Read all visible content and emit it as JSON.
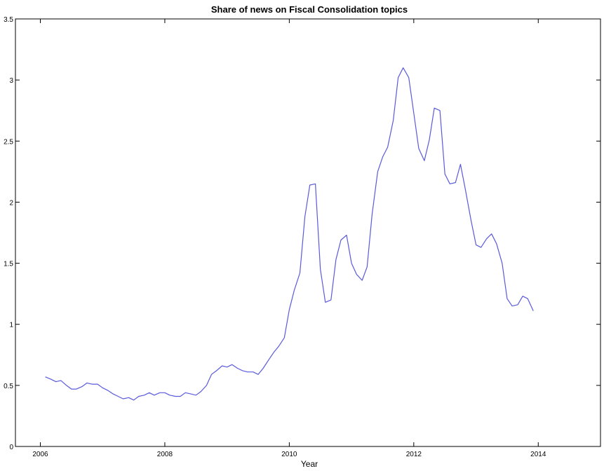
{
  "colors": {
    "background": "#ffffff",
    "axes": "#000000",
    "series_line": "#5a5adc"
  },
  "chart_data": {
    "type": "line",
    "title": "Share of news on Fiscal Consolidation topics",
    "xlabel": "Year",
    "ylabel": "",
    "xlim": [
      2005.6,
      2015.0
    ],
    "ylim": [
      0,
      3.5
    ],
    "xticks": [
      2006,
      2008,
      2010,
      2012,
      2014
    ],
    "xtick_labels": [
      "2006",
      "2008",
      "2010",
      "2012",
      "2014"
    ],
    "yticks": [
      0,
      0.5,
      1,
      1.5,
      2,
      2.5,
      3,
      3.5
    ],
    "ytick_labels": [
      "0",
      "0.5",
      "1",
      "1.5",
      "2",
      "2.5",
      "3",
      "3.5"
    ],
    "grid": false,
    "legend": "none",
    "series": [
      {
        "x": [
          2006.08,
          2006.17,
          2006.25,
          2006.33,
          2006.42,
          2006.5,
          2006.58,
          2006.67,
          2006.75,
          2006.83,
          2006.92,
          2007.0,
          2007.08,
          2007.17,
          2007.25,
          2007.33,
          2007.42,
          2007.5,
          2007.58,
          2007.67,
          2007.75,
          2007.83,
          2007.92,
          2008.0,
          2008.08,
          2008.17,
          2008.25,
          2008.33,
          2008.42,
          2008.5,
          2008.58,
          2008.67,
          2008.75,
          2008.83,
          2008.92,
          2009.0,
          2009.08,
          2009.17,
          2009.25,
          2009.33,
          2009.42,
          2009.5,
          2009.58,
          2009.67,
          2009.75,
          2009.83,
          2009.92,
          2010.0,
          2010.08,
          2010.17,
          2010.25,
          2010.33,
          2010.42,
          2010.5,
          2010.58,
          2010.67,
          2010.75,
          2010.83,
          2010.92,
          2011.0,
          2011.08,
          2011.17,
          2011.25,
          2011.33,
          2011.42,
          2011.5,
          2011.58,
          2011.67,
          2011.75,
          2011.83,
          2011.92,
          2012.0,
          2012.08,
          2012.17,
          2012.25,
          2012.33,
          2012.42,
          2012.5,
          2012.58,
          2012.67,
          2012.75,
          2012.83,
          2012.92,
          2013.0,
          2013.08,
          2013.17,
          2013.25,
          2013.33,
          2013.42,
          2013.5,
          2013.58,
          2013.67,
          2013.75,
          2013.83,
          2013.92
        ],
        "values": [
          0.57,
          0.55,
          0.53,
          0.54,
          0.5,
          0.47,
          0.47,
          0.49,
          0.52,
          0.51,
          0.51,
          0.48,
          0.46,
          0.43,
          0.41,
          0.39,
          0.4,
          0.38,
          0.41,
          0.42,
          0.44,
          0.42,
          0.44,
          0.44,
          0.42,
          0.41,
          0.41,
          0.44,
          0.43,
          0.42,
          0.45,
          0.5,
          0.59,
          0.62,
          0.66,
          0.65,
          0.67,
          0.64,
          0.62,
          0.61,
          0.61,
          0.59,
          0.64,
          0.71,
          0.77,
          0.82,
          0.89,
          1.12,
          1.28,
          1.42,
          1.88,
          2.14,
          2.15,
          1.45,
          1.18,
          1.2,
          1.53,
          1.69,
          1.73,
          1.5,
          1.41,
          1.36,
          1.47,
          1.9,
          2.25,
          2.37,
          2.45,
          2.67,
          3.02,
          3.1,
          3.02,
          2.73,
          2.44,
          2.34,
          2.51,
          2.77,
          2.75,
          2.23,
          2.15,
          2.16,
          2.31,
          2.1,
          1.85,
          1.65,
          1.63,
          1.7,
          1.74,
          1.66,
          1.5,
          1.21,
          1.15,
          1.16,
          1.23,
          1.21,
          1.11
        ]
      }
    ]
  }
}
